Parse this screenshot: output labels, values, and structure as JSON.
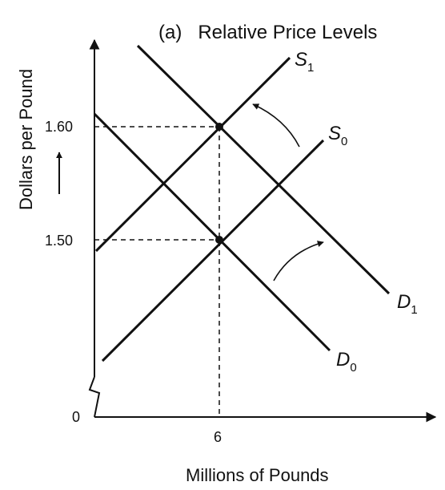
{
  "title": "(a)   Relative Price Levels",
  "axes": {
    "x_label": "Millions of Pounds",
    "y_label": "Dollars per Pound",
    "origin_label": "0",
    "x_ticks": [
      "6"
    ],
    "y_ticks": [
      "1.60",
      "1.50"
    ]
  },
  "curves": {
    "s1": {
      "letter": "S",
      "sub": "1"
    },
    "s0": {
      "letter": "S",
      "sub": "0"
    },
    "d1": {
      "letter": "D",
      "sub": "1"
    },
    "d0": {
      "letter": "D",
      "sub": "0"
    }
  },
  "equilibria": [
    {
      "quantity": 6,
      "price": 1.6,
      "curves": [
        "S1",
        "D1"
      ]
    },
    {
      "quantity": 6,
      "price": 1.5,
      "curves": [
        "S0",
        "D0"
      ]
    }
  ],
  "shifts": [
    "S0 shifts to S1 (supply decreases)",
    "D0 shifts to D1 (demand increases)"
  ],
  "colors": {
    "ink": "#111111",
    "background": "#ffffff"
  }
}
